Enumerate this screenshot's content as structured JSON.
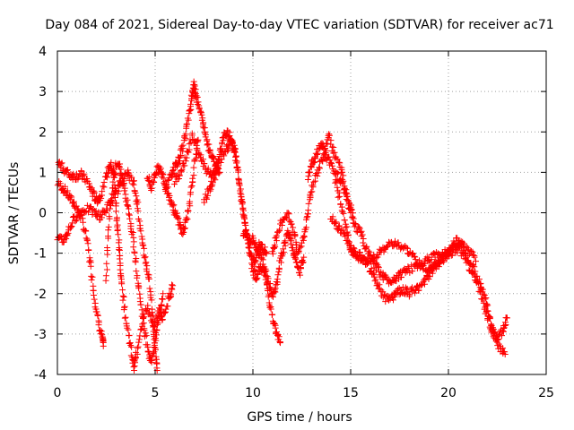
{
  "chart_data": {
    "type": "scatter",
    "title": "Day 084 of 2021, Sidereal Day-to-day VTEC variation (SDTVAR) for receiver ac71",
    "xlabel": "GPS time / hours",
    "ylabel": "SDTVAR / TECUs",
    "xlim": [
      0,
      25
    ],
    "ylim": [
      -4,
      4
    ],
    "xticks": [
      0,
      5,
      10,
      15,
      20,
      25
    ],
    "xtick_labels": [
      "0",
      "5",
      "10",
      "15",
      "20",
      "25"
    ],
    "yticks": [
      -4,
      -3,
      -2,
      -1,
      0,
      1,
      2,
      3,
      4
    ],
    "ytick_labels": [
      "-4",
      "-3",
      "-2",
      "-1",
      "0",
      "1",
      "2",
      "3",
      "4"
    ],
    "grid": true,
    "marker": "plus",
    "color": "#ff0000",
    "series": [
      {
        "name": "SDTVAR",
        "tracks": [
          [
            [
              0.0,
              0.75
            ],
            [
              0.3,
              0.6
            ],
            [
              0.6,
              0.4
            ],
            [
              0.9,
              0.2
            ],
            [
              1.2,
              -0.1
            ],
            [
              1.5,
              -0.6
            ],
            [
              1.7,
              -1.3
            ],
            [
              1.9,
              -2.1
            ],
            [
              2.1,
              -2.7
            ],
            [
              2.3,
              -3.1
            ],
            [
              2.35,
              -3.3
            ]
          ],
          [
            [
              0.0,
              1.25
            ],
            [
              0.3,
              1.1
            ],
            [
              0.6,
              0.95
            ],
            [
              0.9,
              0.9
            ],
            [
              1.2,
              0.95
            ],
            [
              1.5,
              0.8
            ],
            [
              1.8,
              0.5
            ],
            [
              2.0,
              0.3
            ],
            [
              2.2,
              0.4
            ],
            [
              2.5,
              0.9
            ],
            [
              2.7,
              1.2
            ],
            [
              2.9,
              1.0
            ],
            [
              3.0,
              0.2
            ],
            [
              3.1,
              -0.5
            ],
            [
              3.2,
              -1.2
            ],
            [
              3.3,
              -1.8
            ],
            [
              3.5,
              -2.6
            ],
            [
              3.7,
              -3.2
            ],
            [
              3.9,
              -3.8
            ],
            [
              4.0,
              -3.6
            ],
            [
              4.3,
              -2.8
            ],
            [
              4.6,
              -2.3
            ],
            [
              4.9,
              -2.9
            ],
            [
              5.2,
              -2.4
            ],
            [
              5.4,
              -2.6
            ],
            [
              5.7,
              -2.1
            ],
            [
              5.9,
              -1.8
            ]
          ],
          [
            [
              0.0,
              -0.65
            ],
            [
              0.3,
              -0.7
            ],
            [
              0.5,
              -0.5
            ],
            [
              0.8,
              -0.2
            ],
            [
              1.1,
              0.0
            ],
            [
              1.5,
              0.1
            ],
            [
              1.9,
              0.0
            ],
            [
              2.2,
              -0.1
            ],
            [
              2.5,
              0.1
            ],
            [
              2.8,
              0.3
            ],
            [
              3.1,
              0.6
            ],
            [
              3.3,
              0.8
            ],
            [
              3.6,
              1.0
            ],
            [
              3.9,
              0.7
            ],
            [
              4.1,
              0.2
            ],
            [
              4.3,
              -0.6
            ],
            [
              4.5,
              -1.2
            ],
            [
              4.7,
              -1.7
            ],
            [
              4.9,
              -2.6
            ],
            [
              5.0,
              -3.4
            ],
            [
              5.1,
              -3.9
            ]
          ],
          [
            [
              2.5,
              -1.6
            ],
            [
              2.6,
              -0.4
            ],
            [
              2.8,
              0.6
            ],
            [
              3.0,
              1.2
            ],
            [
              3.2,
              1.1
            ],
            [
              3.4,
              0.7
            ],
            [
              3.6,
              0.2
            ],
            [
              3.8,
              -0.4
            ],
            [
              4.0,
              -1.2
            ],
            [
              4.2,
              -2.0
            ],
            [
              4.4,
              -2.7
            ],
            [
              4.6,
              -3.3
            ],
            [
              4.8,
              -3.7
            ],
            [
              5.0,
              -3.2
            ],
            [
              5.2,
              -2.6
            ],
            [
              5.4,
              -2.0
            ]
          ],
          [
            [
              4.6,
              0.9
            ],
            [
              4.8,
              0.6
            ],
            [
              5.0,
              1.0
            ],
            [
              5.2,
              1.1
            ],
            [
              5.4,
              0.9
            ],
            [
              5.6,
              0.6
            ],
            [
              5.8,
              0.3
            ],
            [
              6.0,
              0.0
            ],
            [
              6.2,
              -0.2
            ],
            [
              6.4,
              -0.5
            ],
            [
              6.6,
              -0.2
            ],
            [
              6.8,
              0.4
            ],
            [
              7.0,
              1.2
            ],
            [
              7.2,
              1.8
            ]
          ],
          [
            [
              5.5,
              0.5
            ],
            [
              5.8,
              0.9
            ],
            [
              6.0,
              1.1
            ],
            [
              6.2,
              1.3
            ],
            [
              6.4,
              1.6
            ],
            [
              6.6,
              2.1
            ],
            [
              6.8,
              2.6
            ],
            [
              6.9,
              3.0
            ],
            [
              7.0,
              3.15
            ],
            [
              7.1,
              2.9
            ],
            [
              7.3,
              2.5
            ],
            [
              7.5,
              2.1
            ],
            [
              7.7,
              1.7
            ],
            [
              7.9,
              1.4
            ],
            [
              8.1,
              1.2
            ],
            [
              8.3,
              1.0
            ]
          ],
          [
            [
              6.0,
              0.8
            ],
            [
              6.3,
              1.0
            ],
            [
              6.6,
              1.4
            ],
            [
              6.9,
              1.9
            ],
            [
              7.2,
              1.5
            ],
            [
              7.5,
              1.2
            ],
            [
              7.8,
              0.9
            ],
            [
              8.1,
              1.1
            ],
            [
              8.4,
              1.4
            ],
            [
              8.7,
              1.6
            ],
            [
              8.9,
              1.8
            ],
            [
              9.1,
              1.5
            ],
            [
              9.3,
              0.7
            ],
            [
              9.5,
              0.0
            ],
            [
              9.7,
              -0.6
            ],
            [
              9.9,
              -1.0
            ],
            [
              10.1,
              -1.3
            ],
            [
              10.3,
              -0.8
            ],
            [
              10.5,
              -0.9
            ],
            [
              10.7,
              -1.0
            ]
          ],
          [
            [
              7.5,
              0.3
            ],
            [
              7.8,
              0.6
            ],
            [
              8.0,
              0.8
            ],
            [
              8.2,
              1.2
            ],
            [
              8.4,
              1.7
            ],
            [
              8.6,
              2.0
            ],
            [
              8.8,
              1.9
            ],
            [
              9.0,
              1.6
            ],
            [
              9.2,
              1.2
            ],
            [
              9.4,
              0.4
            ],
            [
              9.6,
              -0.3
            ],
            [
              9.8,
              -0.9
            ],
            [
              10.0,
              -1.4
            ],
            [
              10.2,
              -1.6
            ],
            [
              10.4,
              -1.3
            ],
            [
              10.6,
              -1.5
            ],
            [
              10.8,
              -2.0
            ],
            [
              11.0,
              -2.6
            ],
            [
              11.2,
              -3.0
            ],
            [
              11.4,
              -3.2
            ]
          ],
          [
            [
              9.5,
              -0.5
            ],
            [
              9.8,
              -0.7
            ],
            [
              10.0,
              -0.6
            ],
            [
              10.2,
              -0.9
            ],
            [
              10.5,
              -1.2
            ],
            [
              10.8,
              -1.7
            ],
            [
              11.0,
              -2.1
            ],
            [
              11.2,
              -1.8
            ],
            [
              11.4,
              -1.2
            ],
            [
              11.6,
              -0.8
            ],
            [
              11.8,
              -0.5
            ],
            [
              12.0,
              -0.8
            ],
            [
              12.2,
              -1.2
            ],
            [
              12.4,
              -1.5
            ],
            [
              12.6,
              -1.1
            ]
          ],
          [
            [
              11.0,
              -1.0
            ],
            [
              11.2,
              -0.6
            ],
            [
              11.5,
              -0.2
            ],
            [
              11.8,
              0.0
            ],
            [
              12.1,
              -0.5
            ],
            [
              12.3,
              -1.0
            ],
            [
              12.6,
              -0.6
            ],
            [
              12.8,
              0.0
            ],
            [
              13.0,
              0.6
            ],
            [
              13.3,
              1.0
            ],
            [
              13.6,
              1.4
            ],
            [
              13.9,
              1.3
            ],
            [
              14.2,
              1.0
            ],
            [
              14.5,
              0.8
            ],
            [
              14.8,
              0.4
            ],
            [
              15.0,
              0.0
            ]
          ],
          [
            [
              12.8,
              0.9
            ],
            [
              13.0,
              1.2
            ],
            [
              13.2,
              1.4
            ],
            [
              13.5,
              1.7
            ],
            [
              13.7,
              1.5
            ],
            [
              13.9,
              1.9
            ],
            [
              14.2,
              1.4
            ],
            [
              14.5,
              1.1
            ],
            [
              14.7,
              0.6
            ],
            [
              15.0,
              0.1
            ],
            [
              15.2,
              -0.3
            ],
            [
              15.5,
              -0.5
            ],
            [
              15.8,
              -0.9
            ],
            [
              16.1,
              -1.2
            ],
            [
              16.4,
              -1.4
            ],
            [
              16.7,
              -1.6
            ],
            [
              17.0,
              -1.7
            ],
            [
              17.3,
              -1.6
            ],
            [
              17.6,
              -1.5
            ],
            [
              18.0,
              -1.4
            ],
            [
              18.4,
              -1.3
            ],
            [
              18.8,
              -1.2
            ],
            [
              19.2,
              -1.1
            ],
            [
              19.6,
              -1.0
            ],
            [
              20.0,
              -1.0
            ],
            [
              20.4,
              -0.9
            ],
            [
              20.8,
              -1.0
            ],
            [
              21.2,
              -1.3
            ],
            [
              21.6,
              -1.7
            ],
            [
              21.9,
              -2.2
            ],
            [
              22.1,
              -2.6
            ],
            [
              22.3,
              -3.0
            ],
            [
              22.6,
              -3.3
            ],
            [
              22.9,
              -3.5
            ]
          ],
          [
            [
              14.2,
              0.8
            ],
            [
              14.5,
              0.2
            ],
            [
              14.8,
              -0.4
            ],
            [
              15.0,
              -0.9
            ],
            [
              15.3,
              -1.0
            ],
            [
              15.6,
              -1.1
            ],
            [
              15.9,
              -1.3
            ],
            [
              16.2,
              -1.6
            ],
            [
              16.5,
              -1.9
            ],
            [
              16.8,
              -2.15
            ],
            [
              17.1,
              -2.1
            ],
            [
              17.4,
              -1.95
            ],
            [
              17.7,
              -1.9
            ],
            [
              18.0,
              -2.0
            ],
            [
              18.3,
              -1.9
            ],
            [
              18.6,
              -1.8
            ],
            [
              18.9,
              -1.6
            ],
            [
              19.2,
              -1.4
            ],
            [
              19.5,
              -1.2
            ],
            [
              19.8,
              -1.0
            ],
            [
              20.1,
              -0.9
            ],
            [
              20.4,
              -0.7
            ],
            [
              20.7,
              -0.8
            ],
            [
              21.0,
              -1.3
            ],
            [
              21.3,
              -1.5
            ],
            [
              21.6,
              -1.9
            ],
            [
              21.9,
              -2.4
            ],
            [
              22.2,
              -2.9
            ],
            [
              22.5,
              -3.1
            ],
            [
              22.8,
              -2.9
            ],
            [
              23.0,
              -2.6
            ]
          ],
          [
            [
              14.0,
              -0.1
            ],
            [
              14.3,
              -0.3
            ],
            [
              14.6,
              -0.5
            ],
            [
              15.0,
              -0.9
            ],
            [
              15.4,
              -1.1
            ],
            [
              15.8,
              -1.2
            ],
            [
              16.2,
              -1.1
            ],
            [
              16.6,
              -0.9
            ],
            [
              17.0,
              -0.8
            ],
            [
              17.4,
              -0.8
            ],
            [
              17.8,
              -0.9
            ],
            [
              18.2,
              -1.1
            ],
            [
              18.6,
              -1.3
            ],
            [
              19.0,
              -1.4
            ],
            [
              19.4,
              -1.3
            ],
            [
              19.8,
              -1.1
            ],
            [
              20.2,
              -0.9
            ],
            [
              20.6,
              -0.7
            ],
            [
              21.0,
              -0.9
            ],
            [
              21.4,
              -1.2
            ]
          ]
        ]
      }
    ]
  }
}
